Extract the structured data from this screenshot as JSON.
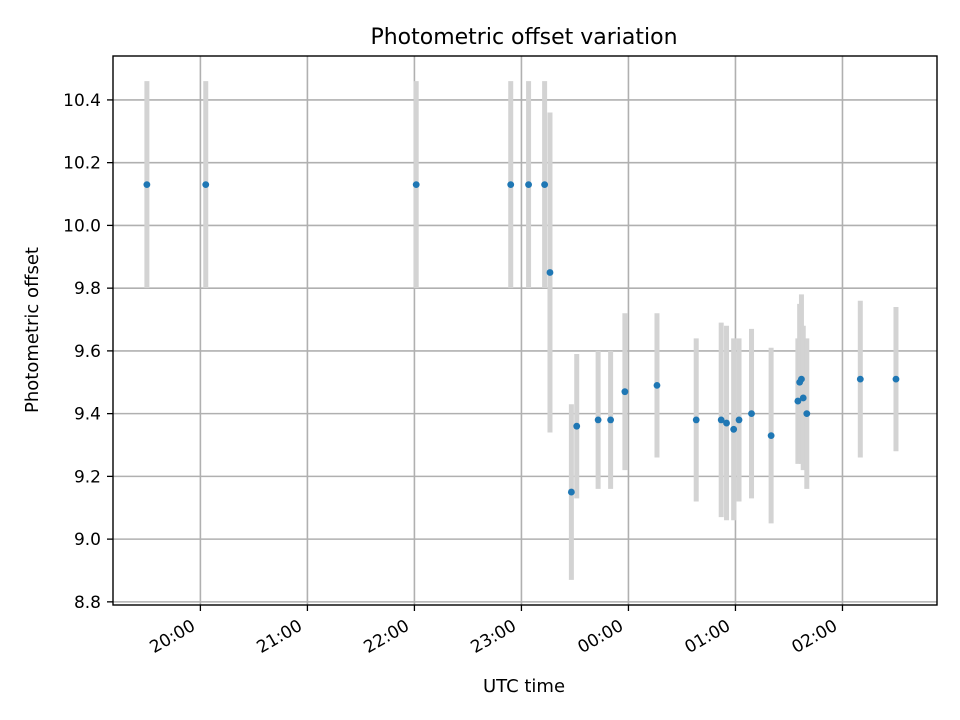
{
  "chart_data": {
    "type": "scatter",
    "title": "Photometric offset variation",
    "xlabel": "UTC time",
    "ylabel": "Photometric offset",
    "grid": true,
    "x_ticks": [
      "20:00",
      "21:00",
      "22:00",
      "23:00",
      "00:00",
      "01:00",
      "02:00"
    ],
    "y_ticks": [
      "8.8",
      "9.0",
      "9.2",
      "9.4",
      "9.6",
      "9.8",
      "10.0",
      "10.2",
      "10.4"
    ],
    "xlim": [
      "19:11",
      "02:53"
    ],
    "ylim": [
      8.79,
      10.54
    ],
    "colors": {
      "point": "#1f77b4",
      "errorbar": "#d3d3d3",
      "grid": "#b0b0b0"
    },
    "points": [
      {
        "x": "19:30",
        "y": 10.13,
        "yerr": 0.33
      },
      {
        "x": "20:03",
        "y": 10.13,
        "yerr": 0.33
      },
      {
        "x": "22:01",
        "y": 10.13,
        "yerr": 0.33
      },
      {
        "x": "22:54",
        "y": 10.13,
        "yerr": 0.33
      },
      {
        "x": "23:04",
        "y": 10.13,
        "yerr": 0.33
      },
      {
        "x": "23:13",
        "y": 10.13,
        "yerr": 0.33
      },
      {
        "x": "23:16",
        "y": 9.85,
        "yerr": 0.51
      },
      {
        "x": "23:28",
        "y": 9.15,
        "yerr": 0.28
      },
      {
        "x": "23:31",
        "y": 9.36,
        "yerr": 0.23
      },
      {
        "x": "23:43",
        "y": 9.38,
        "yerr": 0.22
      },
      {
        "x": "23:50",
        "y": 9.38,
        "yerr": 0.22
      },
      {
        "x": "23:58",
        "y": 9.47,
        "yerr": 0.25
      },
      {
        "x": "00:16",
        "y": 9.49,
        "yerr": 0.23
      },
      {
        "x": "00:38",
        "y": 9.38,
        "yerr": 0.26
      },
      {
        "x": "00:52",
        "y": 9.38,
        "yerr": 0.31
      },
      {
        "x": "00:55",
        "y": 9.37,
        "yerr": 0.31
      },
      {
        "x": "00:59",
        "y": 9.35,
        "yerr": 0.29
      },
      {
        "x": "01:02",
        "y": 9.38,
        "yerr": 0.26
      },
      {
        "x": "01:09",
        "y": 9.4,
        "yerr": 0.27
      },
      {
        "x": "01:20",
        "y": 9.33,
        "yerr": 0.28
      },
      {
        "x": "01:35",
        "y": 9.44,
        "yerr": 0.2
      },
      {
        "x": "01:36",
        "y": 9.5,
        "yerr": 0.25
      },
      {
        "x": "01:37",
        "y": 9.51,
        "yerr": 0.27
      },
      {
        "x": "01:38",
        "y": 9.45,
        "yerr": 0.23
      },
      {
        "x": "01:40",
        "y": 9.4,
        "yerr": 0.24
      },
      {
        "x": "02:10",
        "y": 9.51,
        "yerr": 0.25
      },
      {
        "x": "02:30",
        "y": 9.51,
        "yerr": 0.23
      }
    ]
  }
}
